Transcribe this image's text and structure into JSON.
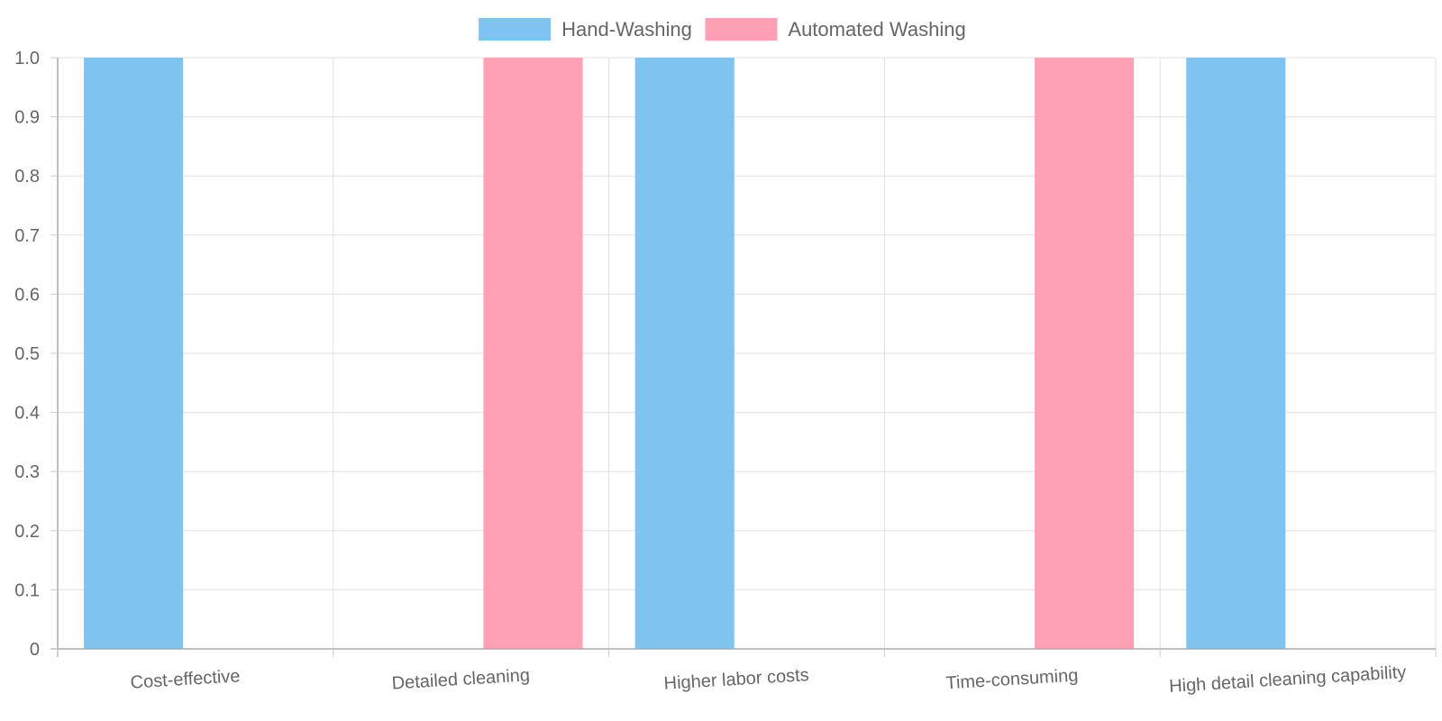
{
  "chart_data": {
    "type": "bar",
    "categories": [
      "Cost-effective",
      "Detailed cleaning",
      "Higher labor costs",
      "Time-consuming",
      "High detail cleaning capability"
    ],
    "series": [
      {
        "name": "Hand-Washing",
        "values": [
          1,
          0,
          1,
          0,
          1
        ],
        "color": "#7fc3f0"
      },
      {
        "name": "Automated Washing",
        "values": [
          0,
          1,
          0,
          1,
          0
        ],
        "color": "#ffa0b4"
      }
    ],
    "ylim": [
      0,
      1
    ],
    "yticks": [
      "0",
      "0.1",
      "0.2",
      "0.3",
      "0.4",
      "0.5",
      "0.6",
      "0.7",
      "0.8",
      "0.9",
      "1.0"
    ],
    "legend_position": "top-center",
    "grid": true
  }
}
